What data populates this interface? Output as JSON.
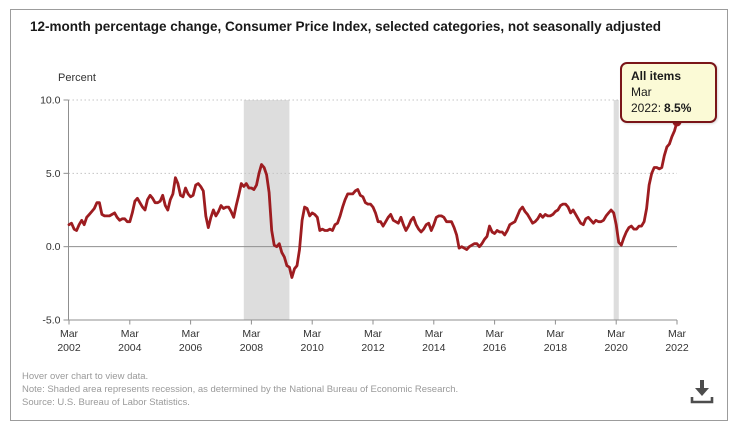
{
  "title": "12-month percentage change, Consumer Price Index, selected categories, not seasonally adjusted",
  "tooltip": {
    "series": "All items",
    "date_label": "Mar 2022:",
    "value": "8.5%"
  },
  "footer": {
    "hover": "Hover over chart to view data.",
    "note": "Note: Shaded area represents recession, as determined by the National Bureau of Economic Research.",
    "source": "Source: U.S. Bureau of Labor Statistics."
  },
  "chart_data": {
    "type": "line",
    "title": "12-month percentage change, Consumer Price Index, selected categories, not seasonally adjusted",
    "y_axis_title": "Percent",
    "series_name": "All items",
    "frequency": "monthly",
    "start": "Mar 2002",
    "end": "Mar 2022",
    "ylim": [
      -5,
      10
    ],
    "line_color": "#9d1c20",
    "recession_color": "#dddddd",
    "grid_dotted_color": "#c4c4c4",
    "axis_color": "#8f8f8f",
    "y_ticks": [
      {
        "label": "10.0",
        "value": 10,
        "style": "dotted"
      },
      {
        "label": "5.0",
        "value": 5,
        "style": "dotted"
      },
      {
        "label": "0.0",
        "value": 0,
        "style": "solid"
      },
      {
        "label": "-5.0",
        "value": -5,
        "style": "solid"
      }
    ],
    "x_ticks": [
      {
        "line1": "Mar",
        "line2": "2002",
        "month_index": 0
      },
      {
        "line1": "Mar",
        "line2": "2004",
        "month_index": 24
      },
      {
        "line1": "Mar",
        "line2": "2006",
        "month_index": 48
      },
      {
        "line1": "Mar",
        "line2": "2008",
        "month_index": 72
      },
      {
        "line1": "Mar",
        "line2": "2010",
        "month_index": 96
      },
      {
        "line1": "Mar",
        "line2": "2012",
        "month_index": 120
      },
      {
        "line1": "Mar",
        "line2": "2014",
        "month_index": 144
      },
      {
        "line1": "Mar",
        "line2": "2016",
        "month_index": 168
      },
      {
        "line1": "Mar",
        "line2": "2018",
        "month_index": 192
      },
      {
        "line1": "Mar",
        "line2": "2020",
        "month_index": 216
      },
      {
        "line1": "Mar",
        "line2": "2022",
        "month_index": 240
      }
    ],
    "recessions": [
      {
        "from": "Dec 2007",
        "to": "Jun 2009",
        "from_index": 69,
        "to_index": 87
      },
      {
        "from": "Feb 2020",
        "to": "Apr 2020",
        "from_index": 215,
        "to_index": 217
      }
    ],
    "values": [
      1.5,
      1.6,
      1.2,
      1.1,
      1.5,
      1.8,
      1.5,
      2.0,
      2.2,
      2.4,
      2.6,
      3.0,
      3.0,
      2.2,
      2.1,
      2.1,
      2.1,
      2.2,
      2.3,
      2.0,
      1.8,
      1.9,
      1.9,
      1.7,
      1.7,
      2.3,
      3.1,
      3.3,
      3.0,
      2.7,
      2.5,
      3.2,
      3.5,
      3.3,
      3.0,
      3.0,
      3.1,
      3.5,
      2.8,
      2.5,
      3.2,
      3.6,
      4.7,
      4.3,
      3.5,
      3.4,
      4.0,
      3.6,
      3.4,
      3.5,
      4.2,
      4.3,
      4.1,
      3.8,
      2.1,
      1.3,
      2.0,
      2.5,
      2.1,
      2.4,
      2.8,
      2.6,
      2.7,
      2.7,
      2.4,
      2.0,
      2.8,
      3.5,
      4.3,
      4.1,
      4.3,
      4.0,
      4.0,
      3.9,
      4.2,
      5.0,
      5.6,
      5.4,
      4.9,
      3.7,
      1.1,
      0.1,
      0.0,
      0.2,
      -0.4,
      -0.7,
      -1.3,
      -1.4,
      -2.1,
      -1.5,
      -1.3,
      -0.2,
      1.8,
      2.7,
      2.6,
      2.1,
      2.3,
      2.2,
      2.0,
      1.1,
      1.2,
      1.1,
      1.1,
      1.2,
      1.1,
      1.5,
      1.6,
      2.1,
      2.7,
      3.2,
      3.6,
      3.6,
      3.6,
      3.8,
      3.9,
      3.5,
      3.4,
      3.0,
      2.9,
      2.9,
      2.7,
      2.3,
      1.7,
      1.7,
      1.4,
      1.7,
      2.0,
      2.2,
      1.8,
      1.7,
      1.6,
      2.0,
      1.5,
      1.1,
      1.4,
      1.8,
      2.0,
      1.5,
      1.2,
      1.0,
      1.2,
      1.5,
      1.6,
      1.1,
      1.5,
      2.0,
      2.1,
      2.1,
      2.0,
      1.7,
      1.7,
      1.7,
      1.3,
      0.8,
      -0.1,
      0.0,
      -0.1,
      -0.2,
      0.0,
      0.1,
      0.2,
      0.2,
      0.0,
      0.2,
      0.5,
      0.7,
      1.4,
      1.0,
      0.9,
      1.1,
      1.0,
      1.0,
      0.8,
      1.1,
      1.5,
      1.6,
      1.7,
      2.1,
      2.5,
      2.7,
      2.4,
      2.2,
      1.9,
      1.6,
      1.7,
      1.9,
      2.2,
      2.0,
      2.2,
      2.1,
      2.1,
      2.2,
      2.4,
      2.5,
      2.8,
      2.9,
      2.9,
      2.7,
      2.3,
      2.5,
      2.2,
      1.9,
      1.6,
      1.5,
      1.9,
      2.0,
      1.8,
      1.6,
      1.8,
      1.7,
      1.7,
      1.8,
      2.1,
      2.3,
      2.5,
      2.3,
      1.5,
      0.3,
      0.1,
      0.6,
      1.0,
      1.3,
      1.4,
      1.2,
      1.2,
      1.4,
      1.4,
      1.7,
      2.6,
      4.2,
      5.0,
      5.4,
      5.4,
      5.3,
      5.4,
      6.2,
      6.8,
      7.0,
      7.5,
      7.9,
      8.5
    ]
  }
}
